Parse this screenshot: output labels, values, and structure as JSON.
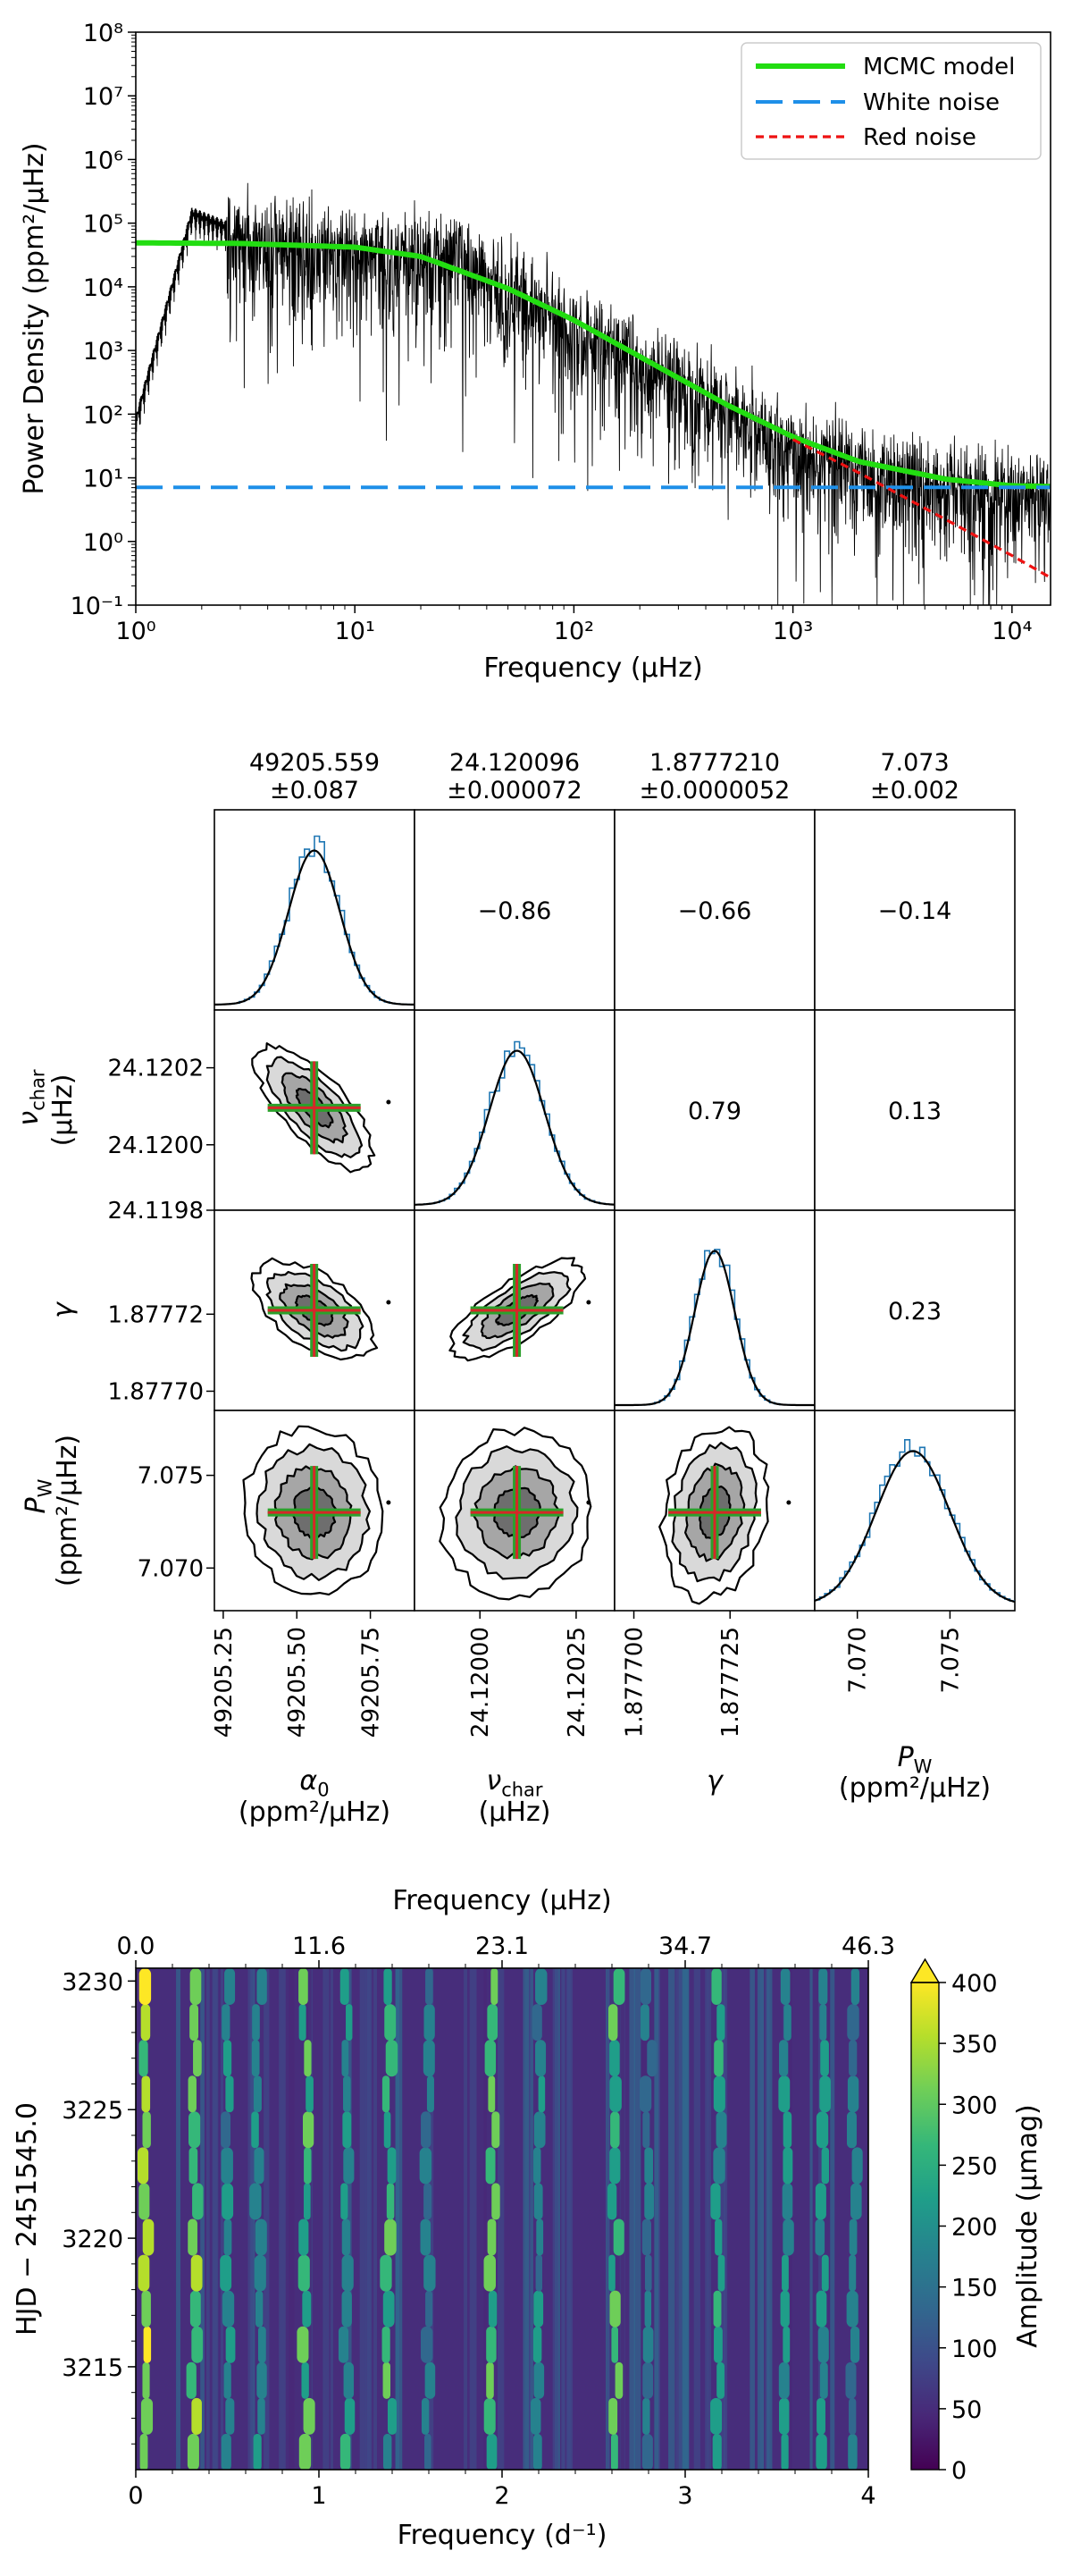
{
  "chart_data": [
    {
      "type": "line",
      "title": "",
      "xlabel": "Frequency (μHz)",
      "ylabel": "Power Density (ppm²/μHz)",
      "xscale": "log",
      "yscale": "log",
      "xlim": [
        1,
        15000
      ],
      "ylim": [
        0.1,
        100000000
      ],
      "grid": false,
      "legend_position": "top-right",
      "x_tick_labels": [
        "10⁰",
        "10¹",
        "10²",
        "10³",
        "10⁴"
      ],
      "y_tick_labels": [
        "10⁻¹",
        "10⁰",
        "10¹",
        "10²",
        "10³",
        "10⁴",
        "10⁵",
        "10⁶",
        "10⁷",
        "10⁸"
      ],
      "series": [
        {
          "name": "MCMC model",
          "color": "#22dd11",
          "style": "solid",
          "x": [
            1,
            3,
            10,
            20,
            50,
            100,
            200,
            500,
            1000,
            2000,
            5000,
            10000,
            15000
          ],
          "y": [
            49000,
            48000,
            42000,
            30000,
            9400,
            3000,
            800,
            140,
            44,
            18,
            9.5,
            7.5,
            7.3
          ]
        },
        {
          "name": "White noise",
          "color": "#1e8fe8",
          "style": "dashed",
          "x": [
            1,
            15000
          ],
          "y": [
            7.07,
            7.07
          ]
        },
        {
          "name": "Red noise",
          "color": "#ee1111",
          "style": "dotted",
          "x": [
            1000,
            2000,
            5000,
            10000,
            15000
          ],
          "y": [
            40,
            12,
            2.2,
            0.6,
            0.27
          ]
        },
        {
          "name": "",
          "color": "#000000",
          "style": "spectrum",
          "x": [
            1,
            1.8,
            3,
            6,
            10,
            30,
            100,
            300,
            1000,
            3000,
            10000,
            15000
          ],
          "y": [
            100,
            180000,
            90000,
            60000,
            50000,
            40000,
            3000,
            500,
            40,
            15,
            8,
            7
          ]
        }
      ]
    },
    {
      "type": "corner",
      "params": [
        "α₀",
        "ν_char",
        "γ",
        "P_W"
      ],
      "header_values": [
        "49205.559",
        "24.120096",
        "1.8777210",
        "7.073"
      ],
      "header_errors": [
        "±0.087",
        "±0.000072",
        "±0.0000052",
        "±0.002"
      ],
      "correlations": {
        "a0_nu": "−0.86",
        "a0_gamma": "−0.66",
        "a0_pw": "−0.14",
        "nu_gamma": "0.79",
        "nu_pw": "0.13",
        "gamma_pw": "0.23"
      },
      "means": [
        49205.559,
        24.120096,
        1.877721,
        7.073
      ],
      "sigmas": [
        0.087,
        7.2e-05,
        5.2e-06,
        0.002
      ],
      "ranges": [
        [
          49205.22,
          49205.9
        ],
        [
          24.11983,
          24.12035
        ],
        [
          1.877695,
          1.877747
        ],
        [
          7.0677,
          7.0785
        ]
      ],
      "x_tick_labels": [
        [
          "49205.25",
          "49205.50",
          "49205.75"
        ],
        [
          "24.12000",
          "24.12025"
        ],
        [
          "1.877700",
          "1.877725"
        ],
        [
          "7.070",
          "7.075"
        ]
      ],
      "y_tick_labels": {
        "nu_char": [
          "24.1202",
          "24.1200",
          "24.1198"
        ],
        "gamma": [
          "1.87772",
          "1.87770"
        ],
        "pw": [
          "7.075",
          "7.070"
        ]
      },
      "row_labels": {
        "nu_char": {
          "symbol": "ν",
          "sub": "char",
          "unit": "(μHz)"
        },
        "gamma": {
          "symbol": "γ"
        },
        "pw": {
          "symbol": "P",
          "sub": "W",
          "unit": "(ppm²/μHz)"
        }
      },
      "col_labels": {
        "a0": {
          "symbol": "α",
          "sub": "0",
          "unit": "(ppm²/μHz)"
        },
        "nu_char": {
          "symbol": "ν",
          "sub": "char",
          "unit": "(μHz)"
        },
        "gamma": {
          "symbol": "γ"
        },
        "pw": {
          "symbol": "P",
          "sub": "W",
          "unit": "(ppm²/μHz)"
        }
      },
      "colors": {
        "histogram": "#1f77b4",
        "fit": "#000000",
        "cross_h": "#2ca02c",
        "cross_v": "#d62728"
      }
    },
    {
      "type": "heatmap",
      "xlabel_bottom": "Frequency (d⁻¹)",
      "xlabel_top": "Frequency (μHz)",
      "ylabel": "HJD − 2451545.0",
      "colorbar_label": "Amplitude (μmag)",
      "colormap": "viridis",
      "xlim": [
        0,
        4
      ],
      "ylim": [
        3211,
        3230.5
      ],
      "clim": [
        0,
        400
      ],
      "x_ticks": [
        0,
        1,
        2,
        3,
        4
      ],
      "x_tick_labels": [
        "0",
        "1",
        "2",
        "3",
        "4"
      ],
      "top_tick_labels": [
        "0.0",
        "11.6",
        "23.1",
        "34.7",
        "46.3"
      ],
      "y_ticks": [
        3215,
        3220,
        3225,
        3230
      ],
      "y_tick_labels": [
        "3215",
        "3220",
        "3225",
        "3230"
      ],
      "colorbar_ticks": [
        0,
        50,
        100,
        150,
        200,
        250,
        300,
        350,
        400
      ],
      "colorbar_tick_labels": [
        "0",
        "50",
        "100",
        "150",
        "200",
        "250",
        "300",
        "350",
        "400"
      ],
      "ridges": [
        {
          "freq": 0.05,
          "amp": 400
        },
        {
          "freq": 0.32,
          "amp": 360
        },
        {
          "freq": 0.5,
          "amp": 220
        },
        {
          "freq": 0.67,
          "amp": 240
        },
        {
          "freq": 0.93,
          "amp": 330
        },
        {
          "freq": 1.15,
          "amp": 250
        },
        {
          "freq": 1.38,
          "amp": 300
        },
        {
          "freq": 1.6,
          "amp": 200
        },
        {
          "freq": 1.95,
          "amp": 320
        },
        {
          "freq": 2.2,
          "amp": 210
        },
        {
          "freq": 2.62,
          "amp": 330
        },
        {
          "freq": 2.8,
          "amp": 180
        },
        {
          "freq": 3.18,
          "amp": 280
        },
        {
          "freq": 3.55,
          "amp": 240
        },
        {
          "freq": 3.75,
          "amp": 230
        },
        {
          "freq": 3.92,
          "amp": 200
        }
      ],
      "gradient_stops": [
        "#440154",
        "#482878",
        "#3e4989",
        "#31688e",
        "#26828e",
        "#1f9e89",
        "#35b779",
        "#6ece58",
        "#b5de2b",
        "#fde725"
      ]
    }
  ]
}
